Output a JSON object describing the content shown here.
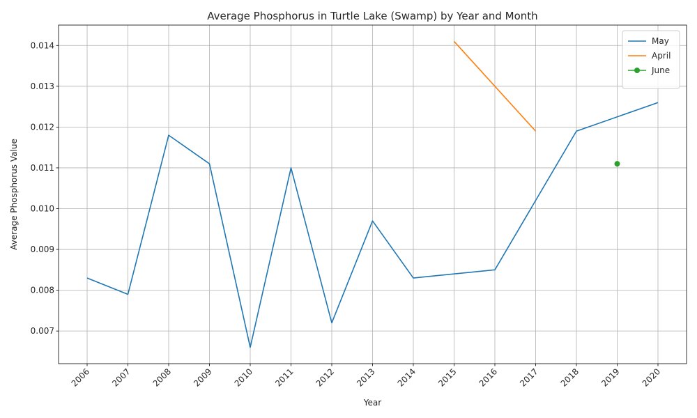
{
  "chart_data": {
    "type": "line",
    "title": "Average Phosphorus in Turtle Lake (Swamp) by Year and Month",
    "xlabel": "Year",
    "ylabel": "Average Phosphorus Value",
    "categories": [
      "2006",
      "2007",
      "2008",
      "2009",
      "2010",
      "2011",
      "2012",
      "2013",
      "2014",
      "2015",
      "2016",
      "2017",
      "2018",
      "2019",
      "2020"
    ],
    "ylim": [
      0.0062,
      0.0145
    ],
    "yticks": [
      "0.007",
      "0.008",
      "0.009",
      "0.010",
      "0.011",
      "0.012",
      "0.013",
      "0.014"
    ],
    "grid": true,
    "legend_position": "top-right",
    "series": [
      {
        "name": "May",
        "color": "#1f77b4",
        "marker": "none",
        "values": [
          0.0083,
          0.0079,
          0.0118,
          0.0111,
          0.0066,
          0.011,
          0.0072,
          0.0097,
          0.0083,
          null,
          0.0085,
          0.0102,
          0.0119,
          null,
          0.0126
        ]
      },
      {
        "name": "April",
        "color": "#ff7f0e",
        "marker": "none",
        "values": [
          null,
          null,
          null,
          null,
          null,
          null,
          null,
          null,
          null,
          0.0141,
          0.013,
          0.0119,
          null,
          null,
          null
        ]
      },
      {
        "name": "June",
        "color": "#2ca02c",
        "marker": "circle",
        "values": [
          null,
          null,
          null,
          null,
          null,
          null,
          null,
          null,
          null,
          null,
          null,
          null,
          null,
          0.0111,
          null
        ]
      }
    ]
  }
}
